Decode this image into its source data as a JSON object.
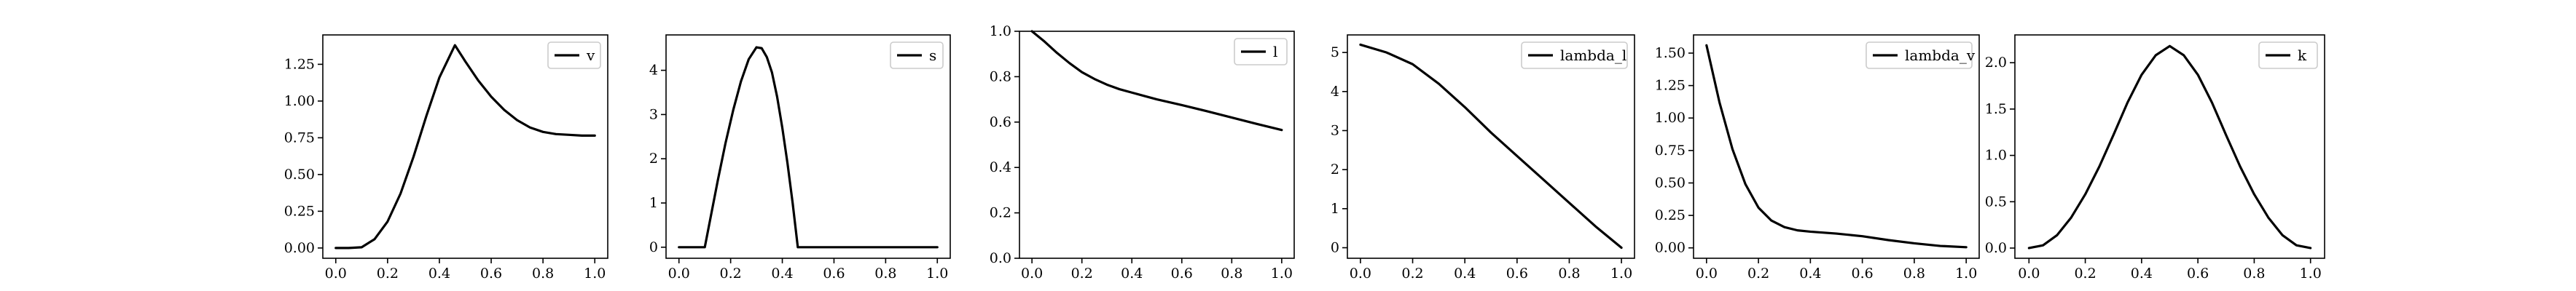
{
  "chart_data": [
    {
      "type": "line",
      "legend": "v",
      "legend_position": "top-right",
      "xlim": [
        -0.05,
        1.05
      ],
      "ylim": [
        -0.07,
        1.45
      ],
      "xticks": [
        0.0,
        0.2,
        0.4,
        0.6,
        0.8,
        1.0
      ],
      "xtick_labels": [
        "0.0",
        "0.2",
        "0.4",
        "0.6",
        "0.8",
        "1.0"
      ],
      "yticks": [
        0.0,
        0.25,
        0.5,
        0.75,
        1.0,
        1.25
      ],
      "ytick_labels": [
        "0.00",
        "0.25",
        "0.50",
        "0.75",
        "1.00",
        "1.25"
      ],
      "series": [
        {
          "x": [
            0.0,
            0.05,
            0.1,
            0.15,
            0.2,
            0.25,
            0.3,
            0.35,
            0.4,
            0.46,
            0.5,
            0.55,
            0.6,
            0.65,
            0.7,
            0.75,
            0.8,
            0.85,
            0.9,
            0.95,
            1.0
          ],
          "y": [
            0.0,
            0.0,
            0.005,
            0.06,
            0.18,
            0.37,
            0.62,
            0.9,
            1.16,
            1.38,
            1.27,
            1.14,
            1.03,
            0.94,
            0.87,
            0.82,
            0.79,
            0.775,
            0.77,
            0.765,
            0.765
          ]
        }
      ]
    },
    {
      "type": "line",
      "legend": "s",
      "legend_position": "top-right",
      "xlim": [
        -0.05,
        1.05
      ],
      "ylim": [
        -0.25,
        4.8
      ],
      "xticks": [
        0.0,
        0.2,
        0.4,
        0.6,
        0.8,
        1.0
      ],
      "xtick_labels": [
        "0.0",
        "0.2",
        "0.4",
        "0.6",
        "0.8",
        "1.0"
      ],
      "yticks": [
        0,
        1,
        2,
        3,
        4
      ],
      "ytick_labels": [
        "0",
        "1",
        "2",
        "3",
        "4"
      ],
      "series": [
        {
          "x": [
            0.0,
            0.1,
            0.12,
            0.15,
            0.18,
            0.21,
            0.24,
            0.27,
            0.3,
            0.32,
            0.34,
            0.36,
            0.38,
            0.4,
            0.42,
            0.44,
            0.46,
            0.6,
            0.8,
            1.0
          ],
          "y": [
            0.0,
            0.0,
            0.6,
            1.5,
            2.35,
            3.1,
            3.75,
            4.25,
            4.52,
            4.5,
            4.3,
            3.95,
            3.4,
            2.7,
            1.9,
            1.0,
            0.0,
            0.0,
            0.0,
            0.0
          ]
        }
      ]
    },
    {
      "type": "line",
      "legend": "l",
      "legend_position": "top-right",
      "xlim": [
        -0.05,
        1.05
      ],
      "ylim": [
        0.0,
        1.0
      ],
      "xticks": [
        0.0,
        0.2,
        0.4,
        0.6,
        0.8,
        1.0
      ],
      "xtick_labels": [
        "0.0",
        "0.2",
        "0.4",
        "0.6",
        "0.8",
        "1.0"
      ],
      "yticks": [
        0.0,
        0.2,
        0.4,
        0.6,
        0.8,
        1.0
      ],
      "ytick_labels": [
        "0.0",
        "0.2",
        "0.4",
        "0.6",
        "0.8",
        "1.0"
      ],
      "series": [
        {
          "x": [
            0.0,
            0.05,
            0.1,
            0.15,
            0.2,
            0.25,
            0.3,
            0.35,
            0.4,
            0.45,
            0.5,
            0.6,
            0.7,
            0.8,
            0.9,
            1.0
          ],
          "y": [
            1.0,
            0.955,
            0.905,
            0.86,
            0.82,
            0.79,
            0.765,
            0.745,
            0.73,
            0.715,
            0.7,
            0.675,
            0.648,
            0.62,
            0.592,
            0.565
          ]
        }
      ]
    },
    {
      "type": "line",
      "legend": "lambda_l",
      "legend_position": "top-right",
      "xlim": [
        -0.05,
        1.05
      ],
      "ylim": [
        -0.27,
        5.45
      ],
      "xticks": [
        0.0,
        0.2,
        0.4,
        0.6,
        0.8,
        1.0
      ],
      "xtick_labels": [
        "0.0",
        "0.2",
        "0.4",
        "0.6",
        "0.8",
        "1.0"
      ],
      "yticks": [
        0,
        1,
        2,
        3,
        4,
        5
      ],
      "ytick_labels": [
        "0",
        "1",
        "2",
        "3",
        "4",
        "5"
      ],
      "series": [
        {
          "x": [
            0.0,
            0.1,
            0.2,
            0.3,
            0.4,
            0.5,
            0.6,
            0.7,
            0.8,
            0.9,
            1.0
          ],
          "y": [
            5.2,
            5.0,
            4.7,
            4.2,
            3.6,
            2.95,
            2.35,
            1.75,
            1.15,
            0.55,
            0.0
          ]
        }
      ]
    },
    {
      "type": "line",
      "legend": "lambda_v",
      "legend_position": "top-right",
      "xlim": [
        -0.05,
        1.05
      ],
      "ylim": [
        -0.08,
        1.64
      ],
      "xticks": [
        0.0,
        0.2,
        0.4,
        0.6,
        0.8,
        1.0
      ],
      "xtick_labels": [
        "0.0",
        "0.2",
        "0.4",
        "0.6",
        "0.8",
        "1.0"
      ],
      "yticks": [
        0.0,
        0.25,
        0.5,
        0.75,
        1.0,
        1.25,
        1.5
      ],
      "ytick_labels": [
        "0.00",
        "0.25",
        "0.50",
        "0.75",
        "1.00",
        "1.25",
        "1.50"
      ],
      "series": [
        {
          "x": [
            0.0,
            0.05,
            0.1,
            0.15,
            0.2,
            0.25,
            0.3,
            0.35,
            0.4,
            0.5,
            0.6,
            0.7,
            0.8,
            0.9,
            1.0
          ],
          "y": [
            1.56,
            1.12,
            0.76,
            0.49,
            0.31,
            0.21,
            0.16,
            0.135,
            0.125,
            0.11,
            0.09,
            0.06,
            0.035,
            0.015,
            0.005
          ]
        }
      ]
    },
    {
      "type": "line",
      "legend": "k",
      "legend_position": "top-right",
      "xlim": [
        -0.05,
        1.05
      ],
      "ylim": [
        -0.11,
        2.3
      ],
      "xticks": [
        0.0,
        0.2,
        0.4,
        0.6,
        0.8,
        1.0
      ],
      "xtick_labels": [
        "0.0",
        "0.2",
        "0.4",
        "0.6",
        "0.8",
        "1.0"
      ],
      "yticks": [
        0.0,
        0.5,
        1.0,
        1.5,
        2.0
      ],
      "ytick_labels": [
        "0.0",
        "0.5",
        "1.0",
        "1.5",
        "2.0"
      ],
      "series": [
        {
          "x": [
            0.0,
            0.05,
            0.1,
            0.15,
            0.2,
            0.25,
            0.3,
            0.35,
            0.4,
            0.45,
            0.5,
            0.55,
            0.6,
            0.65,
            0.7,
            0.75,
            0.8,
            0.85,
            0.9,
            0.95,
            1.0
          ],
          "y": [
            0.0,
            0.03,
            0.14,
            0.33,
            0.58,
            0.88,
            1.22,
            1.57,
            1.87,
            2.08,
            2.18,
            2.08,
            1.87,
            1.57,
            1.22,
            0.88,
            0.58,
            0.33,
            0.14,
            0.03,
            0.0
          ]
        }
      ]
    }
  ]
}
